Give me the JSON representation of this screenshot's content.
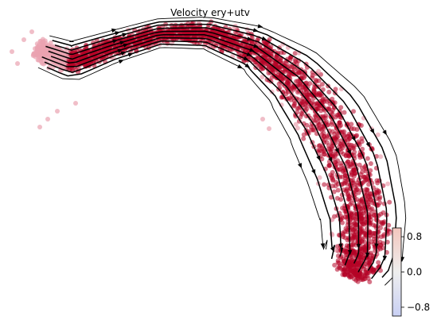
{
  "chart_data": {
    "type": "scatter",
    "subtype": "velocity-stream-embedding",
    "title": "Velocity ery+utv",
    "xlabel": "",
    "ylabel": "",
    "axes_visible": false,
    "grid": false,
    "point_color_dominant": "#b40426",
    "point_color_light": "#e9a3b1",
    "stream_color": "#000000",
    "colorbar": {
      "colormap": "coolwarm",
      "range": [
        -1.0,
        1.0
      ],
      "ticks": [
        {
          "value": 0.8,
          "label": "0.8"
        },
        {
          "value": 0.0,
          "label": "0.0"
        },
        {
          "value": -0.8,
          "label": "−0.8"
        }
      ],
      "low_color": "#3b4cc0",
      "mid_color": "#dddddd",
      "high_color": "#b40426",
      "placement": "right"
    }
  }
}
